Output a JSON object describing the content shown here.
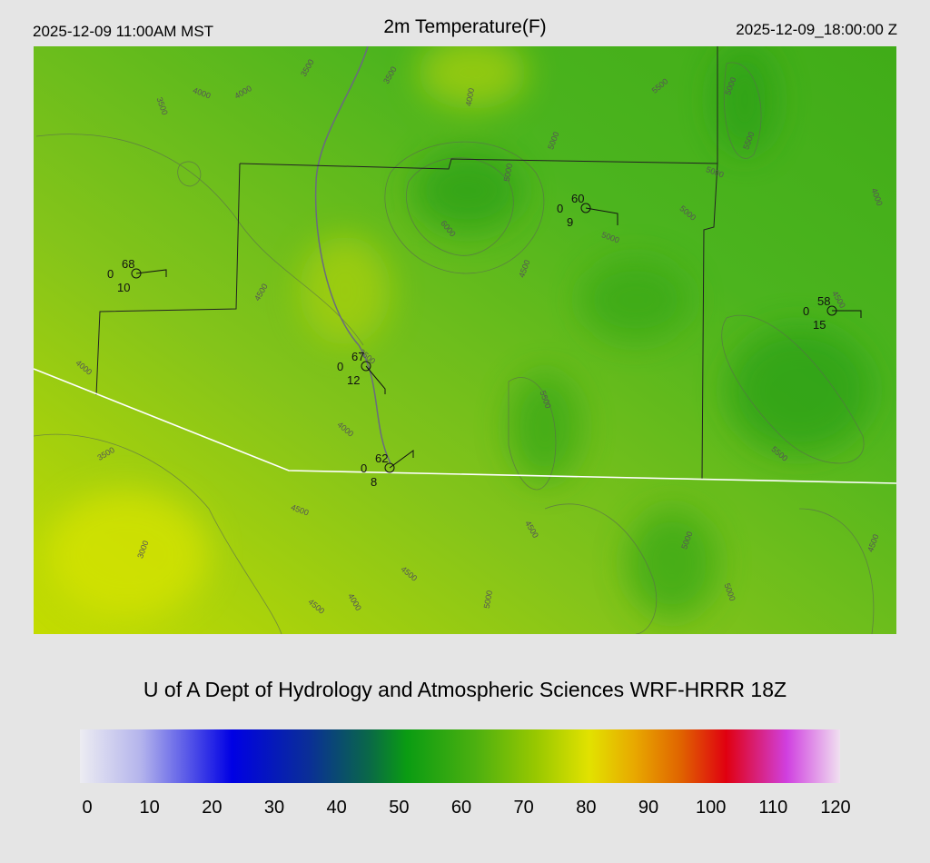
{
  "header": {
    "valid_local": "2025-12-09 11:00AM MST",
    "title": "2m Temperature(F)",
    "valid_utc": "2025-12-09_18:00:00 Z"
  },
  "stations": [
    {
      "upper": 68,
      "left": 0,
      "lower": 10
    },
    {
      "upper": 60,
      "left": 0,
      "lower": 9
    },
    {
      "upper": 58,
      "left": 0,
      "lower": 15
    },
    {
      "upper": 67,
      "left": 0,
      "lower": 12
    },
    {
      "upper": 62,
      "left": 0,
      "lower": 8
    }
  ],
  "contour_labels": [
    "3500",
    "4000",
    "4000",
    "3500",
    "3500",
    "4000",
    "5500",
    "5000",
    "5500",
    "5000",
    "5000",
    "5000",
    "5000",
    "5000",
    "6000",
    "4500",
    "4000",
    "4500",
    "4500",
    "4000",
    "3500",
    "4000",
    "5500",
    "3500",
    "5500",
    "4500",
    "4500",
    "5000",
    "4500",
    "3000",
    "4500",
    "4000",
    "4500",
    "5000",
    "5000"
  ],
  "credit": "U of A Dept of Hydrology and Atmospheric Sciences WRF-HRRR 18Z",
  "colorbar": {
    "ticks": [
      0,
      10,
      20,
      30,
      40,
      50,
      60,
      70,
      80,
      90,
      100,
      110,
      120
    ]
  }
}
